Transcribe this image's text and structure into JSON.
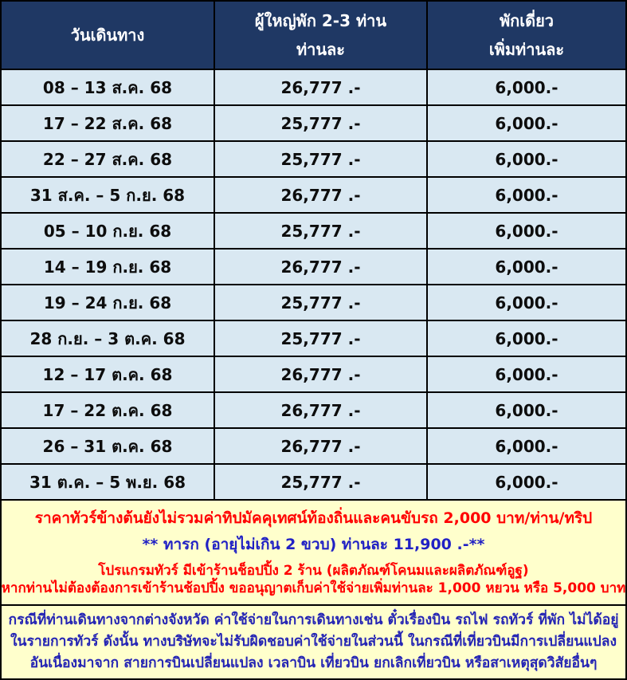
{
  "table": {
    "headers": {
      "date_col": "วันเดินทาง",
      "adult_col_line1": "ผู้ใหญ่พัก 2-3 ท่าน",
      "adult_col_line2": "ท่านละ",
      "single_col_line1": "พักเดี่ยว",
      "single_col_line2": "เพิ่มท่านละ"
    },
    "rows": [
      {
        "date": "08 – 13 ส.ค. 68",
        "adult_price": "26,777 .-",
        "single_supplement": "6,000.-"
      },
      {
        "date": "17 – 22 ส.ค. 68",
        "adult_price": "25,777 .-",
        "single_supplement": "6,000.-"
      },
      {
        "date": "22 – 27 ส.ค. 68",
        "adult_price": "25,777 .-",
        "single_supplement": "6,000.-"
      },
      {
        "date": "31 ส.ค. – 5 ก.ย. 68",
        "adult_price": "26,777 .-",
        "single_supplement": "6,000.-"
      },
      {
        "date": "05 – 10 ก.ย. 68",
        "adult_price": "25,777 .-",
        "single_supplement": "6,000.-"
      },
      {
        "date": "14 – 19 ก.ย. 68",
        "adult_price": "26,777 .-",
        "single_supplement": "6,000.-"
      },
      {
        "date": "19 – 24 ก.ย. 68",
        "adult_price": "25,777 .-",
        "single_supplement": "6,000.-"
      },
      {
        "date": "28 ก.ย. – 3 ต.ค. 68",
        "adult_price": "25,777 .-",
        "single_supplement": "6,000.-"
      },
      {
        "date": "12 – 17 ต.ค. 68",
        "adult_price": "26,777 .-",
        "single_supplement": "6,000.-"
      },
      {
        "date": "17 – 22 ต.ค. 68",
        "adult_price": "26,777 .-",
        "single_supplement": "6,000.-"
      },
      {
        "date": "26 – 31 ต.ค. 68",
        "adult_price": "26,777 .-",
        "single_supplement": "6,000.-"
      },
      {
        "date": "31 ต.ค. – 5 พ.ย. 68",
        "adult_price": "25,777 .-",
        "single_supplement": "6,000.-"
      }
    ]
  },
  "notes": {
    "tip_note": "ราคาทัวร์ข้างต้นยังไม่รวมค่าทิปมัคคุเทศน์ท้องถิ่นและคนขับรถ 2,000 บาท/ท่าน/ทริป",
    "infant_note": "** ทารก (อายุไม่เกิน 2 ขวบ) ท่านละ 11,900 .-**",
    "shopping_note_1": "โปรแกรมทัวร์ มีเข้าร้านช็อปปิ้ง 2 ร้าน (ผลิตภัณฑ์โคนมและผลิตภัณฑ์อูฐ)",
    "shopping_note_2": "หากท่านไม่ต้องต้องการเข้าร้านช้อปปิ้ง ขออนุญาตเก็บค่าใช้จ่ายเพิ่มท่านละ 1,000 หยวน หรือ 5,000 บาท",
    "disclaimer": "กรณีที่ท่านเดินทางจากต่างจังหวัด ค่าใช้จ่ายในการเดินทางเช่น ตั๋วเรื่องบิน รถไฟ รถทัวร์ ที่พัก ไม่ได้อยู่ในรายการทัวร์ ดังนั้น ทางบริษัทจะไม่รับผิดชอบค่าใช้จ่ายในส่วนนี้ ในกรณีที่เที่ยวบินมีการเปลี่ยนแปลง อันเนื่องมาจาก สายการบินเปลี่ยนแปลง เวลาบิน เที่ยวบิน ยกเลิกเที่ยวบิน หรือสาเหตุสุดวิสัยอื่นๆ"
  },
  "colors": {
    "header_bg": "#1F3864",
    "row_bg": "#D9E8F2",
    "note_bg": "#FFFFCC",
    "note_red": "#FF0000",
    "note_blue": "#2121C4",
    "border": "#000000"
  }
}
